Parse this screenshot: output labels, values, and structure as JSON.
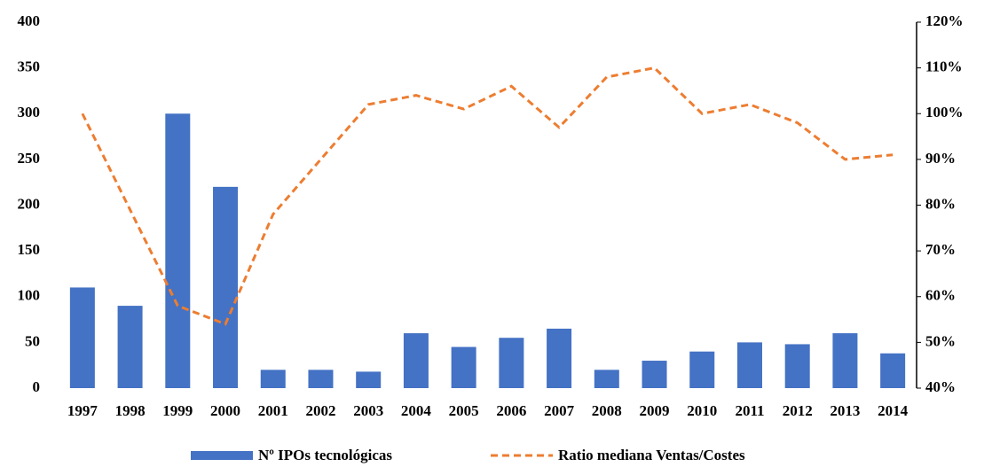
{
  "chart_data": {
    "type": "bar_line",
    "categories": [
      "1997",
      "1998",
      "1999",
      "2000",
      "2001",
      "2002",
      "2003",
      "2004",
      "2005",
      "2006",
      "2007",
      "2008",
      "2009",
      "2010",
      "2011",
      "2012",
      "2013",
      "2014"
    ],
    "series": [
      {
        "name": "Nº IPOs tecnológicas",
        "type": "bar",
        "color": "#4472c4",
        "values": [
          110,
          90,
          300,
          220,
          20,
          20,
          18,
          60,
          45,
          55,
          65,
          20,
          30,
          40,
          50,
          48,
          60,
          38
        ]
      },
      {
        "name": "Ratio mediana Ventas/Costes",
        "type": "line",
        "axis": "y2",
        "color": "#ed7d31",
        "dashed": true,
        "values": [
          100,
          79,
          58,
          54,
          78,
          90,
          102,
          104,
          101,
          106,
          97,
          108,
          110,
          100,
          102,
          98,
          90,
          91
        ]
      }
    ],
    "ylim": [
      0,
      400
    ],
    "yticks": [
      0,
      50,
      100,
      150,
      200,
      250,
      300,
      350,
      400
    ],
    "y2lim": [
      40,
      120
    ],
    "y2ticks": [
      {
        "value": 40,
        "label": "40%"
      },
      {
        "value": 50,
        "label": "50%"
      },
      {
        "value": 60,
        "label": "60%"
      },
      {
        "value": 70,
        "label": "70%"
      },
      {
        "value": 80,
        "label": "80%"
      },
      {
        "value": 90,
        "label": "90%"
      },
      {
        "value": 100,
        "label": "100%"
      },
      {
        "value": 110,
        "label": "110%"
      },
      {
        "value": 120,
        "label": "120%"
      }
    ],
    "grid": false,
    "legend": "bottom"
  }
}
